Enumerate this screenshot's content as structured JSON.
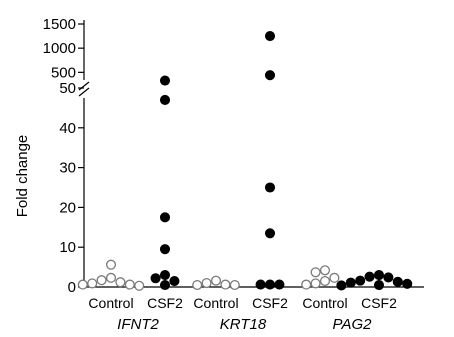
{
  "chart_data": {
    "type": "scatter",
    "title": "",
    "ylabel": "Fold change",
    "y_axis": {
      "broken": true,
      "lower_segment": {
        "range": [
          0,
          50
        ],
        "ticks": [
          0,
          10,
          20,
          30,
          40,
          50
        ]
      },
      "upper_segment": {
        "range": [
          300,
          1500
        ],
        "ticks": [
          500,
          1000,
          1500
        ]
      }
    },
    "groups": [
      {
        "gene": "IFNT2",
        "conditions": [
          {
            "label": "Control",
            "marker": "open",
            "values": [
              5.6,
              2.3,
              1.7,
              1.2,
              0.9,
              0.6,
              0.6,
              0.3
            ]
          },
          {
            "label": "CSF2",
            "marker": "filled",
            "values": [
              330,
              47,
              17.5,
              9.5,
              3,
              2.2,
              1.5,
              0.5
            ]
          }
        ]
      },
      {
        "gene": "KRT18",
        "conditions": [
          {
            "label": "Control",
            "marker": "open",
            "values": [
              1.6,
              1.0,
              0.6,
              0.5,
              0.5
            ]
          },
          {
            "label": "CSF2",
            "marker": "filled",
            "values": [
              1250,
              440,
              25,
              13.5,
              0.6,
              0.6,
              0.6
            ]
          }
        ]
      },
      {
        "gene": "PAG2",
        "conditions": [
          {
            "label": "Control",
            "marker": "open",
            "values": [
              4.2,
              3.7,
              2.3,
              1.5,
              0.9,
              0.6
            ]
          },
          {
            "label": "CSF2",
            "marker": "filled",
            "values": [
              3.0,
              2.6,
              2.4,
              1.6,
              1.3,
              1.1,
              0.8,
              0.5,
              0.4
            ]
          }
        ]
      }
    ]
  }
}
